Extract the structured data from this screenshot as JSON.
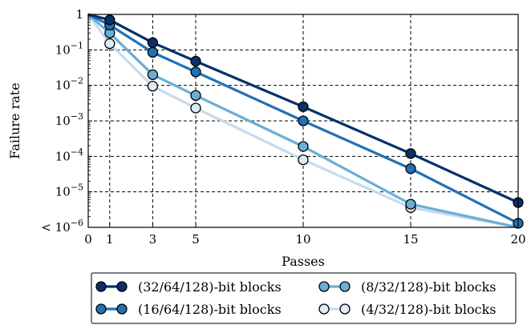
{
  "chart_data": {
    "type": "line",
    "xlabel": "Passes",
    "ylabel": "Failure rate",
    "yscale": "log",
    "xlim": [
      0,
      20
    ],
    "ylim": [
      1e-06,
      1
    ],
    "grid": true,
    "legend_position": "bottom",
    "x_ticks": [
      0,
      1,
      3,
      5,
      10,
      15,
      20
    ],
    "x_tick_labels": [
      "0",
      "1",
      "3",
      "5",
      "10",
      "15",
      "20"
    ],
    "y_ticks": [
      1e-06,
      1e-05,
      0.0001,
      0.001,
      0.01,
      0.1,
      1
    ],
    "y_tick_labels": [
      {
        "base": "< 10",
        "exp": "−6"
      },
      {
        "base": "10",
        "exp": "−5"
      },
      {
        "base": "10",
        "exp": "−4"
      },
      {
        "base": "10",
        "exp": "−3"
      },
      {
        "base": "10",
        "exp": "−2"
      },
      {
        "base": "10",
        "exp": "−1"
      },
      {
        "base": "1",
        "exp": ""
      }
    ],
    "series": [
      {
        "name": "(32/64/128)-bit blocks",
        "color": "#08306b",
        "marker_face": "#08306b",
        "points": [
          [
            0,
            1
          ],
          [
            1,
            0.7
          ],
          [
            3,
            0.16
          ],
          [
            5,
            0.048
          ],
          [
            10,
            0.0025
          ],
          [
            15,
            0.00012
          ],
          [
            20,
            5e-06
          ]
        ],
        "markers": [
          [
            1,
            0.7
          ],
          [
            3,
            0.16
          ],
          [
            5,
            0.048
          ],
          [
            10,
            0.0025
          ],
          [
            15,
            0.00012
          ],
          [
            20,
            5e-06
          ]
        ]
      },
      {
        "name": "(16/64/128)-bit blocks",
        "color": "#2171b5",
        "marker_face": "#2171b5",
        "points": [
          [
            0,
            1
          ],
          [
            1,
            0.5
          ],
          [
            3,
            0.085
          ],
          [
            5,
            0.024
          ],
          [
            10,
            0.001
          ],
          [
            15,
            4.5e-05
          ],
          [
            20,
            1.3e-06
          ]
        ],
        "markers": [
          [
            1,
            0.5
          ],
          [
            3,
            0.085
          ],
          [
            5,
            0.024
          ],
          [
            10,
            0.001
          ],
          [
            15,
            4.5e-05
          ],
          [
            20,
            1.3e-06
          ]
        ]
      },
      {
        "name": "(8/32/128)-bit blocks",
        "color": "#6baed6",
        "marker_face": "#6baed6",
        "points": [
          [
            0,
            1
          ],
          [
            1,
            0.3
          ],
          [
            3,
            0.02
          ],
          [
            5,
            0.0052
          ],
          [
            10,
            0.00019
          ],
          [
            15,
            4.5e-06
          ],
          [
            20,
            1e-06
          ]
        ],
        "markers": [
          [
            1,
            0.3
          ],
          [
            3,
            0.02
          ],
          [
            5,
            0.0052
          ],
          [
            10,
            0.00019
          ],
          [
            15,
            4.5e-06
          ]
        ]
      },
      {
        "name": "(4/32/128)-bit blocks",
        "color": "#c6dbef",
        "marker_face": "#deebf7",
        "points": [
          [
            0,
            1
          ],
          [
            1,
            0.15
          ],
          [
            3,
            0.0095
          ],
          [
            5,
            0.0023
          ],
          [
            10,
            8e-05
          ],
          [
            15,
            3.6e-06
          ],
          [
            20,
            1e-06
          ]
        ],
        "markers": [
          [
            1,
            0.15
          ],
          [
            3,
            0.0095
          ],
          [
            5,
            0.0023
          ],
          [
            10,
            8e-05
          ],
          [
            15,
            3.6e-06
          ]
        ]
      }
    ]
  }
}
